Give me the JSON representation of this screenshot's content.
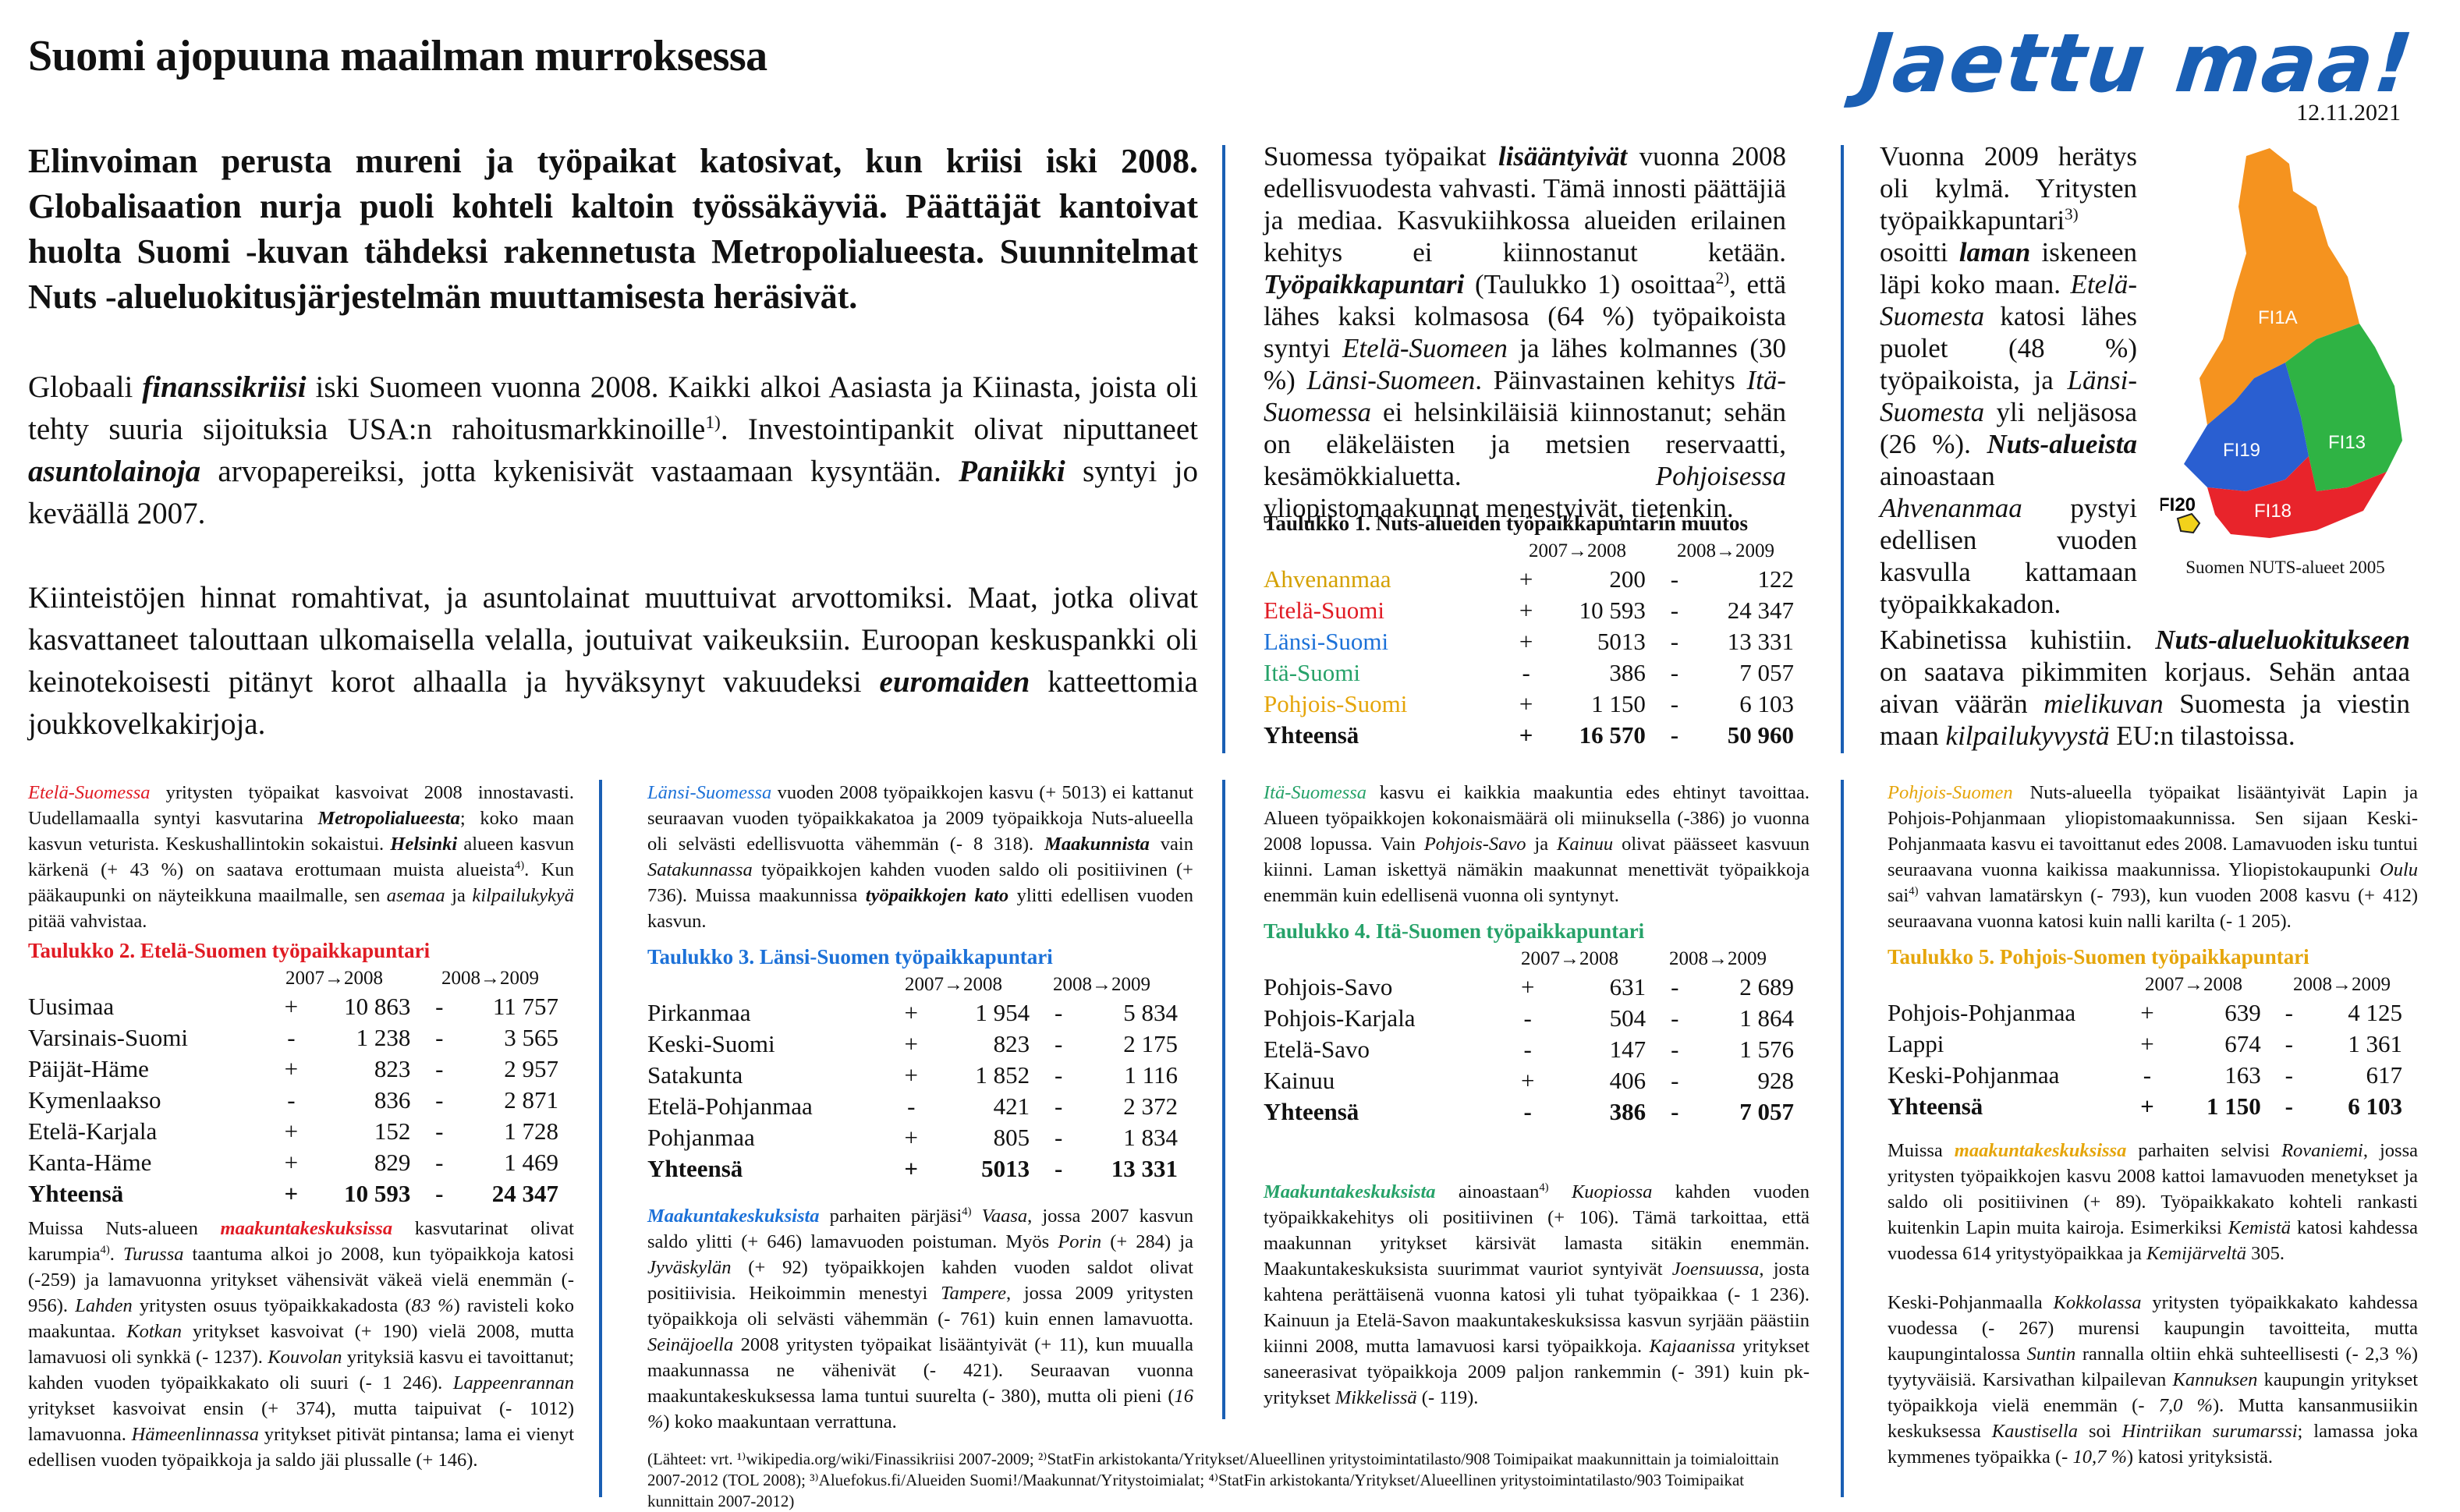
{
  "header": {
    "title": "Suomi ajopuuna maailman murroksessa",
    "logo": "Jaettu maa!",
    "date": "12.11.2021"
  },
  "lead": "Elinvoiman perusta mureni ja työpaikat katosivat, kun kriisi iski 2008. Globalisaation nurja puoli kohteli kaltoin työssäkäyviä. Päättäjät kantoivat huolta Suomi -kuvan tähdeksi rakennetusta Metropolialueesta. Suunnitelmat Nuts -alueluokitusjärjestelmän muuttamisesta heräsivät.",
  "intro": {
    "p1": [
      "Globaali ",
      "finanssikriisi",
      " iski Suomeen vuonna 2008. Kaikki alkoi Aasiasta ja Kiinasta, joista oli tehty suuria sijoituksia USA:n rahoitusmarkkinoille",
      "1)",
      ". Investointipankit olivat niputtaneet ",
      "asuntolainoja",
      " arvopapereiksi, jotta kykenisivät vastaamaan kysyntään. ",
      "Paniikki",
      " syntyi jo keväällä 2007."
    ],
    "p2": [
      "Kiinteistöjen hinnat romahtivat, ja asuntolainat muuttuivat arvottomiksi. Maat, jotka olivat kasvattaneet talouttaan ulkomaisella velalla, joutuivat vaikeuksiin. Euroopan keskuspankki oli keinotekoisesti pitänyt korot alhaalla ja hyväksynyt vakuudeksi ",
      "euromaiden",
      " katteettomia joukkovelkakirjoja."
    ]
  },
  "col3": [
    "Suomessa työpaikat ",
    "lisääntyivät",
    " vuonna 2008 edellisvuodesta vahvasti. Tämä innosti päättäjiä ja mediaa. Kasvukiihkossa alueiden erilainen kehitys ei kiinnostanut ketään. ",
    "Työpaikkapuntari",
    " (Taulukko 1) osoittaa",
    "2)",
    ", että lähes kaksi kolmasosa (64 %) työpaikoista syntyi ",
    "Etelä-Suomeen",
    " ja lähes kolmannes (30 %) ",
    "Länsi-Suomeen",
    ". Päinvastainen kehitys ",
    "Itä-Suomessa",
    " ei helsinkiläisiä kiinnostanut; sehän on eläkeläisten ja metsien reservaatti, kesämökkialuetta. ",
    "Pohjoisessa",
    " yliopistomaakunnat menestyivät, tietenkin."
  ],
  "col4": {
    "p1": [
      "Vuonna 2009 herätys oli kylmä. Yritysten työpaikkapuntari",
      "3)",
      " osoitti ",
      "laman",
      " iskeneen läpi koko maan. ",
      "Etelä-Suomesta",
      " katosi lähes puolet (48 %) työpaikoista, ja ",
      "Länsi-Suomesta",
      " yli neljäsosa (26 %). ",
      "Nuts-alueista",
      " ainoastaan ",
      "Ahvenanmaa",
      " pystyi edellisen vuoden kasvulla kattamaan työpaikkakadon."
    ],
    "p2": [
      "Kabinetissa kuhistiin. ",
      "Nuts-alueluokitukseen",
      " on saatava pikimmiten korjaus. Sehän antaa aivan väärän ",
      "mielikuvan",
      " Suomesta ja viestin maan ",
      "kilpailukyvystä",
      " EU:n tilastoissa."
    ]
  },
  "map": {
    "caption": "Suomen NUTS-alueet 2005",
    "labels": [
      "FI1A",
      "FI13",
      "FI19",
      "FI18",
      "FI20"
    ],
    "colors": {
      "FI1A": "#f5931f",
      "FI13": "#2fb344",
      "FI19": "#2a5fd1",
      "FI18": "#e8242b",
      "FI20": "#f2d21b"
    }
  },
  "period_headers": [
    "2007→2008",
    "2008→2009"
  ],
  "table1": {
    "caption": "Taulukko 1. Nuts-alueiden työpaikkapuntarin muutos",
    "rows": [
      {
        "name": "Ahvenanmaa",
        "s1": "+",
        "v1": "200",
        "s2": "-",
        "v2": "122"
      },
      {
        "name": "Etelä-Suomi",
        "s1": "+",
        "v1": "10 593",
        "s2": "-",
        "v2": "24 347"
      },
      {
        "name": "Länsi-Suomi",
        "s1": "+",
        "v1": "5013",
        "s2": "-",
        "v2": "13 331"
      },
      {
        "name": "Itä-Suomi",
        "s1": "-",
        "v1": "386",
        "s2": "-",
        "v2": "7 057"
      },
      {
        "name": "Pohjois-Suomi",
        "s1": "+",
        "v1": "1 150",
        "s2": "-",
        "v2": "6 103"
      },
      {
        "name": "Yhteensä",
        "s1": "+",
        "v1": "16 570",
        "s2": "-",
        "v2": "50 960"
      }
    ]
  },
  "south": {
    "intro": [
      "Etelä-Suomessa",
      " yritysten työpaikat kasvoivat 2008 innostavasti. Uudellamaalla syntyi kasvutarina ",
      "Metropolialueesta",
      "; koko maan kasvun veturista. Keskushallintokin sokaistui. ",
      "Helsinki",
      " alueen kasvun kärkenä (+ 43 %) on saatava erottumaan muista alueista",
      "4)",
      ". Kun pääkaupunki on näyteikkuna maailmalle, sen ",
      "asemaa",
      " ja ",
      "kilpailukykyä",
      " pitää vahvistaa."
    ],
    "caption": "Taulukko 2. Etelä-Suomen työpaikkapuntari",
    "rows": [
      {
        "name": "Uusimaa",
        "s1": "+",
        "v1": "10 863",
        "s2": "-",
        "v2": "11 757"
      },
      {
        "name": "Varsinais-Suomi",
        "s1": "-",
        "v1": "1 238",
        "s2": "-",
        "v2": "3 565"
      },
      {
        "name": "Päijät-Häme",
        "s1": "+",
        "v1": "823",
        "s2": "-",
        "v2": "2 957"
      },
      {
        "name": "Kymenlaakso",
        "s1": "-",
        "v1": "836",
        "s2": "-",
        "v2": "2 871"
      },
      {
        "name": "Etelä-Karjala",
        "s1": "+",
        "v1": "152",
        "s2": "-",
        "v2": "1 728"
      },
      {
        "name": "Kanta-Häme",
        "s1": "+",
        "v1": "829",
        "s2": "-",
        "v2": "1 469"
      },
      {
        "name": "Yhteensä",
        "s1": "+",
        "v1": "10 593",
        "s2": "-",
        "v2": "24 347"
      }
    ],
    "outro": [
      "Muissa Nuts-alueen ",
      "maakuntakeskuksissa",
      " kasvutarinat olivat karumpia",
      "4)",
      ". ",
      "Turussa",
      " taantuma alkoi jo 2008, kun työpaikkoja katosi (-259) ja lamavuonna yritykset vähensivät väkeä vielä enemmän (- 956). ",
      "Lahden",
      " yritysten osuus työpaikkakadosta (",
      "83 %",
      ") ravisteli koko maakuntaa. ",
      "Kotkan",
      " yritykset kasvoivat (+ 190) vielä 2008, mutta lamavuosi oli synkkä (- 1237). ",
      "Kouvolan",
      " yrityksiä kasvu ei tavoittanut; kahden vuoden työpaikkakato oli suuri (- 1 246). ",
      "Lappeenrannan",
      " yritykset kasvoivat ensin (+ 374), mutta taipuivat (- 1012) lamavuonna. ",
      "Hämeenlinnassa",
      " yritykset pitivät pintansa; lama ei vienyt edellisen vuoden työpaikkoja ja saldo jäi plussalle (+ 146)."
    ]
  },
  "west": {
    "intro": [
      "Länsi-Suomessa",
      " vuoden 2008 työpaikkojen kasvu (+ 5013) ei kattanut seuraavan vuoden työpaikkakatoa ja 2009 työpaikkoja Nuts-alueella oli selvästi edellisvuotta vähemmän (- 8 318). ",
      "Maakunnista",
      " vain ",
      "Satakunnassa",
      " työpaikkojen kahden vuoden saldo oli positiivinen (+ 736). Muissa maakunnissa ",
      "työpaikkojen kato",
      " ylitti edellisen vuoden kasvun."
    ],
    "caption": "Taulukko 3. Länsi-Suomen työpaikkapuntari",
    "rows": [
      {
        "name": "Pirkanmaa",
        "s1": "+",
        "v1": "1 954",
        "s2": "-",
        "v2": "5 834"
      },
      {
        "name": "Keski-Suomi",
        "s1": "+",
        "v1": "823",
        "s2": "-",
        "v2": "2 175"
      },
      {
        "name": "Satakunta",
        "s1": "+",
        "v1": "1 852",
        "s2": "-",
        "v2": "1 116"
      },
      {
        "name": "Etelä-Pohjanmaa",
        "s1": "-",
        "v1": "421",
        "s2": "-",
        "v2": "2 372"
      },
      {
        "name": "Pohjanmaa",
        "s1": "+",
        "v1": "805",
        "s2": "-",
        "v2": "1 834"
      },
      {
        "name": "Yhteensä",
        "s1": "+",
        "v1": "5013",
        "s2": "-",
        "v2": "13 331"
      }
    ],
    "outro": [
      "Maakuntakeskuksista",
      " parhaiten pärjäsi",
      "4)",
      " ",
      "Vaasa",
      ", jossa 2007 kasvun saldo ylitti (+ 646) lamavuoden poistuman. Myös ",
      "Porin",
      " (+ 284) ja ",
      "Jyväskylän",
      " (+ 92) työpaikkojen kahden vuoden saldot olivat positiivisia. Heikoimmin menestyi ",
      "Tampere",
      ", jossa 2009 yritysten työpaikkoja oli selvästi vähemmän (- 761) kuin ennen lamavuotta. ",
      "Seinäjoella",
      " 2008 yritysten työpaikat lisääntyivät (+ 11), kun muualla maakunnassa ne vähenivät (- 421). Seuraavan vuonna maakuntakeskuksessa lama tuntui suurelta (- 380), mutta oli pieni (",
      "16 %",
      ") koko maakuntaan verrattuna."
    ]
  },
  "east": {
    "intro": [
      "Itä-Suomessa",
      " kasvu ei kaikkia maakuntia edes ehtinyt tavoittaa. Alueen työpaikkojen kokonaismäärä oli miinuksella (-386) jo vuonna 2008 lopussa. Vain ",
      "Pohjois-Savo",
      " ja ",
      "Kainuu",
      " olivat päässeet kasvuun kiinni. Laman iskettyä nämäkin maakunnat menettivät työpaikkoja enemmän kuin edellisenä vuonna oli syntynyt."
    ],
    "caption": "Taulukko 4. Itä-Suomen työpaikkapuntari",
    "rows": [
      {
        "name": "Pohjois-Savo",
        "s1": "+",
        "v1": "631",
        "s2": "-",
        "v2": "2 689"
      },
      {
        "name": "Pohjois-Karjala",
        "s1": "-",
        "v1": "504",
        "s2": "-",
        "v2": "1 864"
      },
      {
        "name": "Etelä-Savo",
        "s1": "-",
        "v1": "147",
        "s2": "-",
        "v2": "1 576"
      },
      {
        "name": "Kainuu",
        "s1": "+",
        "v1": "406",
        "s2": "-",
        "v2": "928"
      },
      {
        "name": "Yhteensä",
        "s1": "-",
        "v1": "386",
        "s2": "-",
        "v2": "7 057"
      }
    ],
    "outro": [
      "Maakuntakeskuksista",
      " ainoastaan",
      "4)",
      " ",
      "Kuopiossa",
      " kahden vuoden työpaikkakehitys oli positiivinen (+ 106). Tämä tarkoittaa, että maakunnan yritykset kärsivät lamasta sitäkin enemmän. Maakuntakeskuksista suurimmat vauriot syntyivät ",
      "Joensuussa",
      ", josta kahtena perättäisenä vuonna katosi yli tuhat työpaikkaa (- 1 236). Kainuun ja Etelä-Savon maakuntakeskuksissa kasvun syrjään päästiin kiinni 2008, mutta lamavuosi karsi työpaikkoja. ",
      "Kajaanissa",
      " yritykset saneerasivat työpaikkoja 2009 paljon rankemmin (- 391) kuin pk-yritykset ",
      "Mikkelissä",
      " (- 119)."
    ]
  },
  "north": {
    "intro": [
      "Pohjois-Suomen",
      " Nuts-alueella työpaikat lisääntyivät Lapin ja Pohjois-Pohjanmaan yliopistomaakunnissa. Sen sijaan Keski-Pohjanmaata kasvu ei tavoittanut edes 2008. Lamavuoden isku tuntui seuraavana vuonna kaikissa maakunnissa. Yliopistokaupunki ",
      "Oulu",
      " sai",
      "4)",
      " vahvan lamatärskyn (- 793), kun vuoden 2008 kasvu (+ 412) seuraavana vuonna katosi kuin nalli karilta (- 1 205)."
    ],
    "caption": "Taulukko 5. Pohjois-Suomen työpaikkapuntari",
    "rows": [
      {
        "name": "Pohjois-Pohjanmaa",
        "s1": "+",
        "v1": "639",
        "s2": "-",
        "v2": "4 125"
      },
      {
        "name": "Lappi",
        "s1": "+",
        "v1": "674",
        "s2": "-",
        "v2": "1 361"
      },
      {
        "name": "Keski-Pohjanmaa",
        "s1": "-",
        "v1": "163",
        "s2": "-",
        "v2": "617"
      },
      {
        "name": "Yhteensä",
        "s1": "+",
        "v1": "1 150",
        "s2": "-",
        "v2": "6 103"
      }
    ],
    "outro1": [
      "Muissa ",
      "maakuntakeskuksissa",
      " parhaiten selvisi ",
      "Rovaniemi",
      ", jossa yritysten työpaikkojen kasvu 2008 kattoi lamavuoden menetykset ja saldo oli positiivinen (+ 89). Työpaikkakato kohteli rankasti kuitenkin Lapin muita kairoja. Esimerkiksi ",
      "Kemistä",
      " katosi kahdessa vuodessa 614 yritystyöpaikkaa ja ",
      "Kemijärveltä",
      " 305."
    ],
    "outro2": [
      "Keski-Pohjanmaalla ",
      "Kokkolassa",
      " yritysten työpaikkakato kahdessa vuodessa (- 267) murensi kaupungin tavoitteita, mutta kaupungintalossa ",
      "Suntin",
      " rannalla oltiin ehkä suhteellisesti (- 2,3 %) tyytyväisiä. Karsivathan kilpailevan ",
      "Kannuksen",
      " kaupungin yritykset työpaikkoja vielä enemmän (",
      "- 7,0 %",
      "). Mutta kansanmusiikin keskuksessa ",
      "Kaustisella",
      " soi ",
      "Hintriikan surumarssi",
      "; lamassa joka kymmenes työpaikka (",
      "- 10,7 %",
      ") katosi yrityksistä."
    ]
  },
  "sources": "(Lähteet: vrt. ¹⁾wikipedia.org/wiki/Finassikriisi 2007-2009; ²⁾StatFin arkistokanta/Yritykset/Alueellinen yritystoimintatilasto/908 Toimipaikat maakunnittain ja toimialoittain 2007-2012 (TOL 2008); ³⁾Aluefokus.fi/Alueiden Suomi!/Maakunnat/Yritystoimialat; ⁴⁾StatFin arkistokanta/Yritykset/Alueellinen yritystoimintatilasto/903 Toimipaikat kunnittain 2007-2012)"
}
